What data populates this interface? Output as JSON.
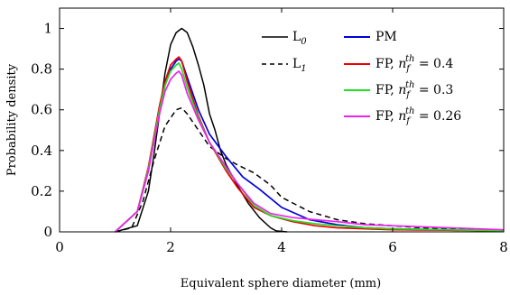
{
  "chart_data": {
    "type": "line",
    "title": "",
    "xlabel": "Equivalent sphere diameter (mm)",
    "ylabel": "Probability density",
    "xlim": [
      0,
      8
    ],
    "ylim": [
      0,
      1.1
    ],
    "xticks": [
      0,
      2,
      4,
      6,
      8
    ],
    "yticks": [
      0,
      0.2,
      0.4,
      0.6,
      0.8,
      1
    ],
    "xtick_labels": [
      "0",
      "2",
      "4",
      "6",
      "8"
    ],
    "ytick_labels": [
      "0",
      "0.2",
      "0.4",
      "0.6",
      "0.8",
      "1"
    ],
    "grid": false,
    "legend_placement": "top-right",
    "series": [
      {
        "name": "L0",
        "legend_main": "L",
        "legend_sub": "0",
        "color": "#000000",
        "dash": "solid",
        "x": [
          1.0,
          1.4,
          1.6,
          1.7,
          1.8,
          1.9,
          2.0,
          2.1,
          2.2,
          2.3,
          2.4,
          2.5,
          2.6,
          2.7,
          2.8,
          2.9,
          3.0,
          3.2,
          3.4,
          3.6,
          3.8,
          3.9,
          4.1
        ],
        "y": [
          0.0,
          0.03,
          0.2,
          0.38,
          0.58,
          0.78,
          0.92,
          0.98,
          1.0,
          0.98,
          0.91,
          0.82,
          0.72,
          0.58,
          0.5,
          0.4,
          0.33,
          0.23,
          0.14,
          0.07,
          0.02,
          0.005,
          0.0
        ]
      },
      {
        "name": "L1",
        "legend_main": "L",
        "legend_sub": "1",
        "color": "#000000",
        "dash": "dashed",
        "x": [
          1.0,
          1.3,
          1.5,
          1.7,
          1.9,
          2.1,
          2.2,
          2.3,
          2.5,
          2.7,
          3.0,
          3.2,
          3.5,
          3.8,
          4.0,
          4.5,
          5.0,
          5.5,
          6.0,
          6.5,
          7.0,
          7.5,
          8.0
        ],
        "y": [
          0.0,
          0.02,
          0.15,
          0.35,
          0.52,
          0.6,
          0.61,
          0.58,
          0.5,
          0.42,
          0.36,
          0.33,
          0.29,
          0.23,
          0.17,
          0.1,
          0.06,
          0.04,
          0.03,
          0.02,
          0.015,
          0.01,
          0.005
        ]
      },
      {
        "name": "PM",
        "legend_main": "PM",
        "legend_sub": "",
        "color": "#0000dd",
        "dash": "solid",
        "x": [
          1.0,
          1.4,
          1.6,
          1.8,
          1.9,
          2.0,
          2.1,
          2.15,
          2.2,
          2.3,
          2.5,
          2.7,
          3.0,
          3.3,
          3.6,
          4.0,
          4.5,
          5.0,
          5.5,
          6.0,
          7.0,
          8.0
        ],
        "y": [
          0.0,
          0.1,
          0.3,
          0.6,
          0.72,
          0.8,
          0.84,
          0.85,
          0.84,
          0.76,
          0.6,
          0.48,
          0.37,
          0.27,
          0.21,
          0.12,
          0.06,
          0.035,
          0.02,
          0.015,
          0.01,
          0.005
        ]
      },
      {
        "name": "FP, nf^th = 0.4",
        "legend_main": "FP, ",
        "legend_var": "n",
        "legend_varsub": "f",
        "legend_sup": "th",
        "legend_value": " = 0.4",
        "color": "#ee0000",
        "dash": "solid",
        "x": [
          1.0,
          1.4,
          1.6,
          1.8,
          1.9,
          2.0,
          2.1,
          2.15,
          2.2,
          2.3,
          2.5,
          2.7,
          3.0,
          3.2,
          3.5,
          3.8,
          4.2,
          4.6,
          5.0,
          5.5,
          6.0,
          7.0,
          8.0
        ],
        "y": [
          0.0,
          0.1,
          0.32,
          0.62,
          0.74,
          0.82,
          0.85,
          0.86,
          0.84,
          0.74,
          0.57,
          0.44,
          0.3,
          0.22,
          0.12,
          0.08,
          0.05,
          0.03,
          0.02,
          0.015,
          0.01,
          0.008,
          0.005
        ]
      },
      {
        "name": "FP, nf^th = 0.3",
        "legend_main": "FP, ",
        "legend_var": "n",
        "legend_varsub": "f",
        "legend_sup": "th",
        "legend_value": " = 0.3",
        "color": "#22dd22",
        "dash": "solid",
        "x": [
          1.0,
          1.4,
          1.6,
          1.8,
          1.9,
          2.0,
          2.1,
          2.15,
          2.2,
          2.3,
          2.5,
          2.7,
          3.0,
          3.2,
          3.5,
          3.8,
          4.2,
          4.6,
          5.0,
          5.5,
          6.0,
          7.0,
          8.0
        ],
        "y": [
          0.0,
          0.1,
          0.31,
          0.6,
          0.72,
          0.79,
          0.82,
          0.83,
          0.8,
          0.71,
          0.56,
          0.44,
          0.31,
          0.24,
          0.13,
          0.08,
          0.055,
          0.04,
          0.03,
          0.02,
          0.015,
          0.01,
          0.006
        ]
      },
      {
        "name": "FP, nf^th = 0.26",
        "legend_main": "FP, ",
        "legend_var": "n",
        "legend_varsub": "f",
        "legend_sup": "th",
        "legend_value": " = 0.26",
        "color": "#ee22ee",
        "dash": "solid",
        "x": [
          1.0,
          1.4,
          1.6,
          1.8,
          1.9,
          2.0,
          2.1,
          2.15,
          2.2,
          2.3,
          2.5,
          2.7,
          3.0,
          3.2,
          3.5,
          3.8,
          4.2,
          4.6,
          5.0,
          5.5,
          6.0,
          7.0,
          8.0
        ],
        "y": [
          0.0,
          0.1,
          0.3,
          0.58,
          0.69,
          0.75,
          0.78,
          0.79,
          0.77,
          0.68,
          0.55,
          0.44,
          0.32,
          0.24,
          0.14,
          0.09,
          0.07,
          0.06,
          0.05,
          0.035,
          0.03,
          0.02,
          0.01
        ]
      }
    ]
  }
}
